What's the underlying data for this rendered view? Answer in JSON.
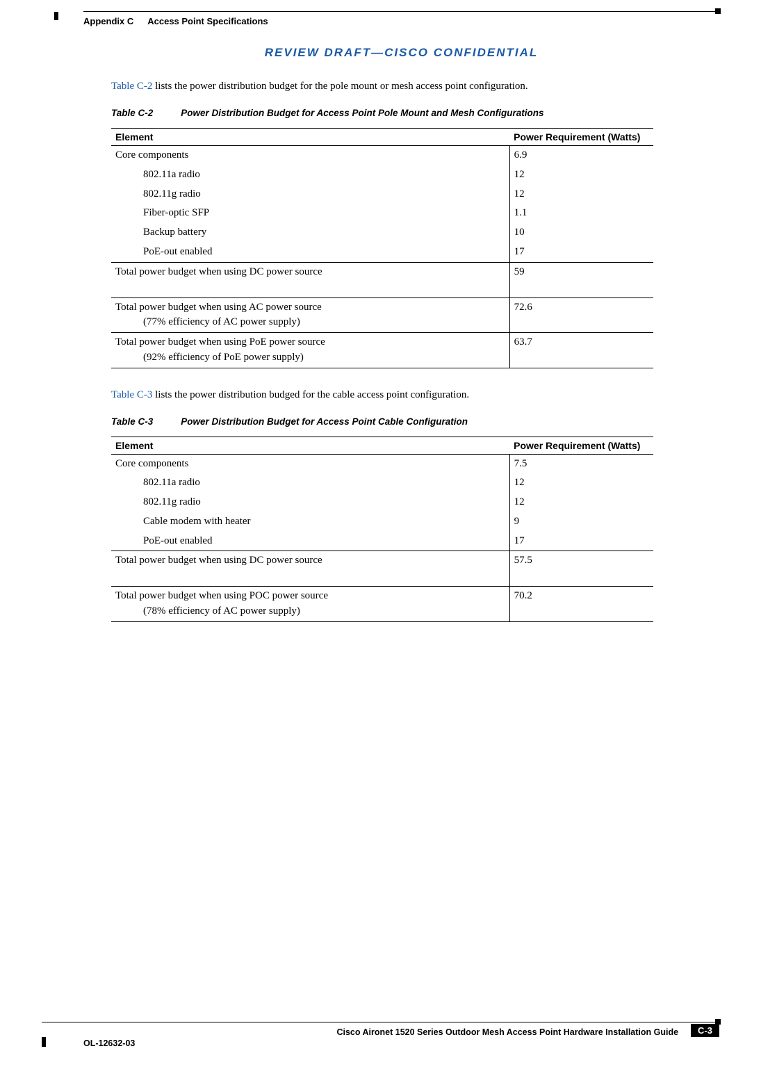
{
  "header": {
    "appendix": "Appendix C",
    "section": "Access Point Specifications"
  },
  "confidential": "REVIEW DRAFT—CISCO CONFIDENTIAL",
  "intro1": {
    "xref": "Table C-2",
    "rest": " lists the power distribution budget for the pole mount or mesh access point configuration."
  },
  "table2": {
    "num": "Table C-2",
    "title": "Power Distribution Budget for Access Point Pole Mount and Mesh Configurations",
    "col1": "Element",
    "col2": "Power Requirement (Watts)",
    "rows": [
      {
        "label": "Core components",
        "val": "6.9",
        "sub": false
      },
      {
        "label": "802.11a radio",
        "val": "12",
        "sub": true
      },
      {
        "label": "802.11g radio",
        "val": "12",
        "sub": true
      },
      {
        "label": "Fiber-optic SFP",
        "val": "1.1",
        "sub": true
      },
      {
        "label": "Backup battery",
        "val": "10",
        "sub": true
      },
      {
        "label": "PoE-out enabled",
        "val": "17",
        "sub": true
      }
    ],
    "totals": [
      {
        "label": "Total power budget when using DC power source",
        "sub": "",
        "val": "59"
      },
      {
        "label": "Total power budget when using AC power source",
        "sub": "(77% efficiency of AC power supply)",
        "val": "72.6"
      },
      {
        "label": "Total power budget when using PoE power source",
        "sub": "(92% efficiency of PoE power supply)",
        "val": "63.7"
      }
    ]
  },
  "intro2": {
    "xref": "Table C-3",
    "rest": " lists the power distribution budged for the cable access point configuration."
  },
  "table3": {
    "num": "Table C-3",
    "title": "Power Distribution Budget for Access Point Cable Configuration",
    "col1": "Element",
    "col2": "Power Requirement (Watts)",
    "rows": [
      {
        "label": "Core components",
        "val": "7.5",
        "sub": false
      },
      {
        "label": "802.11a radio",
        "val": "12",
        "sub": true
      },
      {
        "label": "802.11g radio",
        "val": "12",
        "sub": true
      },
      {
        "label": "Cable modem with heater",
        "val": "9",
        "sub": true
      },
      {
        "label": "PoE-out enabled",
        "val": "17",
        "sub": true
      }
    ],
    "totals": [
      {
        "label": "Total power budget when using DC power source",
        "sub": "",
        "val": "57.5"
      },
      {
        "label": "Total power budget when using POC power source",
        "sub": "(78% efficiency of AC power supply)",
        "val": "70.2"
      }
    ]
  },
  "footer": {
    "title": "Cisco Aironet 1520 Series Outdoor Mesh Access Point Hardware Installation Guide",
    "ol": "OL-12632-03",
    "page": "C-3"
  }
}
